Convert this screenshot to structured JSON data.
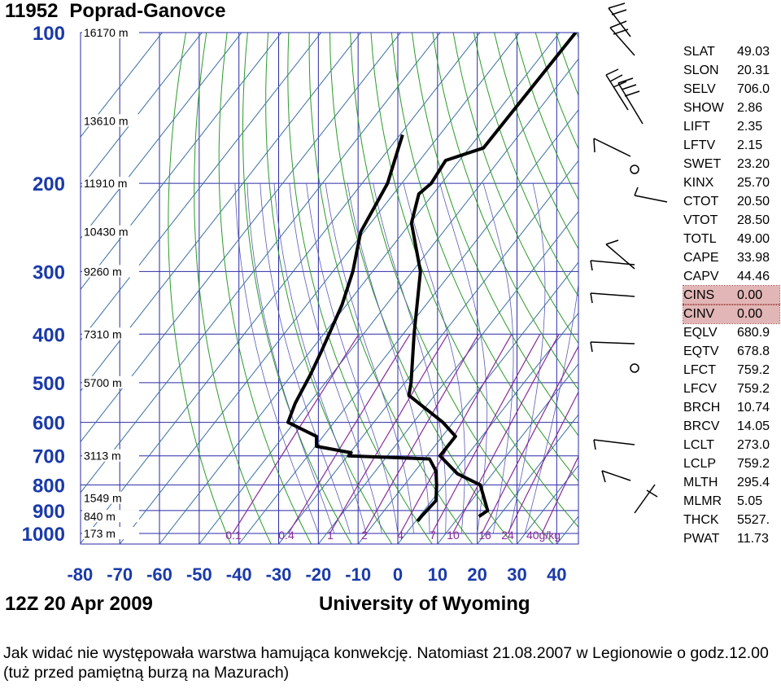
{
  "header": {
    "station_id": "11952",
    "station_name": "Poprad-Ganovce"
  },
  "footer": {
    "time": "12Z 20 Apr 2009",
    "source": "University of Wyoming"
  },
  "caption": "Jak widać nie występowała warstwa hamująca konwekcję. Natomiast 21.08.2007 w Legionowie o godz.12.00 (tuż przed pamiętną burzą na Mazurach)",
  "indices": [
    {
      "key": "SLAT",
      "value": "49.03"
    },
    {
      "key": "SLON",
      "value": "20.31"
    },
    {
      "key": "SELV",
      "value": "706.0"
    },
    {
      "key": "SHOW",
      "value": "2.86"
    },
    {
      "key": "LIFT",
      "value": "2.35"
    },
    {
      "key": "LFTV",
      "value": "2.15"
    },
    {
      "key": "SWET",
      "value": "23.20"
    },
    {
      "key": "KINX",
      "value": "25.70"
    },
    {
      "key": "CTOT",
      "value": "20.50"
    },
    {
      "key": "VTOT",
      "value": "28.50"
    },
    {
      "key": "TOTL",
      "value": "49.00"
    },
    {
      "key": "CAPE",
      "value": "33.98"
    },
    {
      "key": "CAPV",
      "value": "44.46"
    },
    {
      "key": "CINS",
      "value": "0.00",
      "highlight": true
    },
    {
      "key": "CINV",
      "value": "0.00",
      "highlight": true
    },
    {
      "key": "EQLV",
      "value": "680.9"
    },
    {
      "key": "EQTV",
      "value": "678.8"
    },
    {
      "key": "LFCT",
      "value": "759.2"
    },
    {
      "key": "LFCV",
      "value": "759.2"
    },
    {
      "key": "BRCH",
      "value": "10.74"
    },
    {
      "key": "BRCV",
      "value": "14.05"
    },
    {
      "key": "LCLT",
      "value": "273.0"
    },
    {
      "key": "LCLP",
      "value": "759.2"
    },
    {
      "key": "MLTH",
      "value": "295.4"
    },
    {
      "key": "MLMR",
      "value": "5.05"
    },
    {
      "key": "THCK",
      "value": "5527."
    },
    {
      "key": "PWAT",
      "value": "11.73"
    }
  ],
  "chart_data": {
    "type": "line",
    "title": "11952 Poprad-Ganovce",
    "xlabel": "",
    "ylabel": "",
    "x_ticks": [
      -80,
      -70,
      -60,
      -50,
      -40,
      -30,
      -20,
      -10,
      0,
      10,
      20,
      30,
      40
    ],
    "y_ticks": [
      100,
      200,
      300,
      400,
      500,
      600,
      700,
      800,
      900,
      1000
    ],
    "height_labels": [
      {
        "p": 100,
        "label": "16170 m"
      },
      {
        "p": 150,
        "label": "13610 m"
      },
      {
        "p": 200,
        "label": "11910 m"
      },
      {
        "p": 250,
        "label": "10430 m"
      },
      {
        "p": 300,
        "label": "9260 m"
      },
      {
        "p": 400,
        "label": "7310 m"
      },
      {
        "p": 500,
        "label": "5700 m"
      },
      {
        "p": 700,
        "label": "3113 m"
      },
      {
        "p": 850,
        "label": "1549 m"
      },
      {
        "p": 925,
        "label": "840 m"
      },
      {
        "p": 1000,
        "label": "173 m"
      }
    ],
    "mixing_ratio_labels": [
      "0.1",
      "0.4",
      "1",
      "2",
      "4",
      "7",
      "10",
      "16",
      "24",
      "40g/kg"
    ],
    "series": [
      {
        "values": [
          [
            100,
            -56
          ],
          [
            170,
            -56
          ],
          [
            180,
            -63
          ],
          [
            200,
            -62
          ],
          [
            210,
            -63
          ],
          [
            240,
            -59
          ],
          [
            300,
            -47
          ],
          [
            400,
            -36
          ],
          [
            500,
            -27
          ],
          [
            530,
            -25
          ],
          [
            600,
            -11
          ],
          [
            640,
            -5
          ],
          [
            700,
            -5
          ],
          [
            760,
            3
          ],
          [
            800,
            11
          ],
          [
            900,
            18
          ],
          [
            925,
            17
          ]
        ]
      },
      {
        "values": [
          [
            160,
            -79
          ],
          [
            200,
            -73
          ],
          [
            250,
            -70
          ],
          [
            300,
            -64
          ],
          [
            350,
            -60
          ],
          [
            430,
            -56
          ],
          [
            480,
            -54
          ],
          [
            550,
            -52
          ],
          [
            600,
            -50
          ],
          [
            640,
            -40
          ],
          [
            670,
            -38
          ],
          [
            690,
            -28
          ],
          [
            700,
            -28
          ],
          [
            710,
            -7
          ],
          [
            750,
            -3
          ],
          [
            800,
            0
          ],
          [
            860,
            3
          ],
          [
            925,
            2.5
          ],
          [
            945,
            2.5
          ]
        ]
      }
    ]
  }
}
